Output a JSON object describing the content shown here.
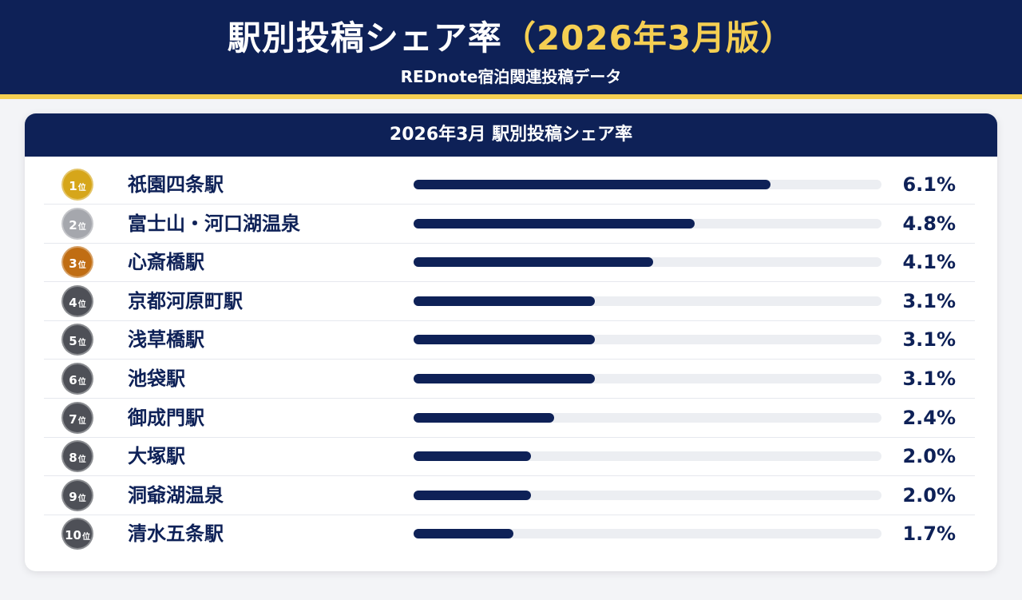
{
  "header": {
    "title_main": "駅別投稿シェア率",
    "title_highlight": "（2026年3月版）",
    "subtitle": "REDnote宿泊関連投稿データ"
  },
  "colors": {
    "navy": "#0e2157",
    "gold": "#d6a61a",
    "silver": "#a5a7ad",
    "bronze": "#c06d13",
    "gray": "#4e5057",
    "accent": "#f5cf52"
  },
  "chart_data": {
    "type": "bar",
    "title": "2026年3月 駅別投稿シェア率",
    "xlabel": "",
    "ylabel": "",
    "ylim": [
      0,
      8
    ],
    "rank_suffix": "位",
    "categories": [
      "祇園四条駅",
      "富士山・河口湖温泉",
      "心斎橋駅",
      "京都河原町駅",
      "浅草橋駅",
      "池袋駅",
      "御成門駅",
      "大塚駅",
      "洞爺湖温泉",
      "清水五条駅"
    ],
    "values": [
      6.1,
      4.8,
      4.1,
      3.1,
      3.1,
      3.1,
      2.4,
      2.0,
      2.0,
      1.7
    ],
    "rows": [
      {
        "rank": "1",
        "name": "祇園四条駅",
        "value": 6.1,
        "label": "6.1%",
        "medal": "gold"
      },
      {
        "rank": "2",
        "name": "富士山・河口湖温泉",
        "value": 4.8,
        "label": "4.8%",
        "medal": "silver"
      },
      {
        "rank": "3",
        "name": "心斎橋駅",
        "value": 4.1,
        "label": "4.1%",
        "medal": "bronze"
      },
      {
        "rank": "4",
        "name": "京都河原町駅",
        "value": 3.1,
        "label": "3.1%",
        "medal": "gray"
      },
      {
        "rank": "5",
        "name": "浅草橋駅",
        "value": 3.1,
        "label": "3.1%",
        "medal": "gray"
      },
      {
        "rank": "6",
        "name": "池袋駅",
        "value": 3.1,
        "label": "3.1%",
        "medal": "gray"
      },
      {
        "rank": "7",
        "name": "御成門駅",
        "value": 2.4,
        "label": "2.4%",
        "medal": "gray"
      },
      {
        "rank": "8",
        "name": "大塚駅",
        "value": 2.0,
        "label": "2.0%",
        "medal": "gray"
      },
      {
        "rank": "9",
        "name": "洞爺湖温泉",
        "value": 2.0,
        "label": "2.0%",
        "medal": "gray"
      },
      {
        "rank": "10",
        "name": "清水五条駅",
        "value": 1.7,
        "label": "1.7%",
        "medal": "gray"
      }
    ]
  }
}
